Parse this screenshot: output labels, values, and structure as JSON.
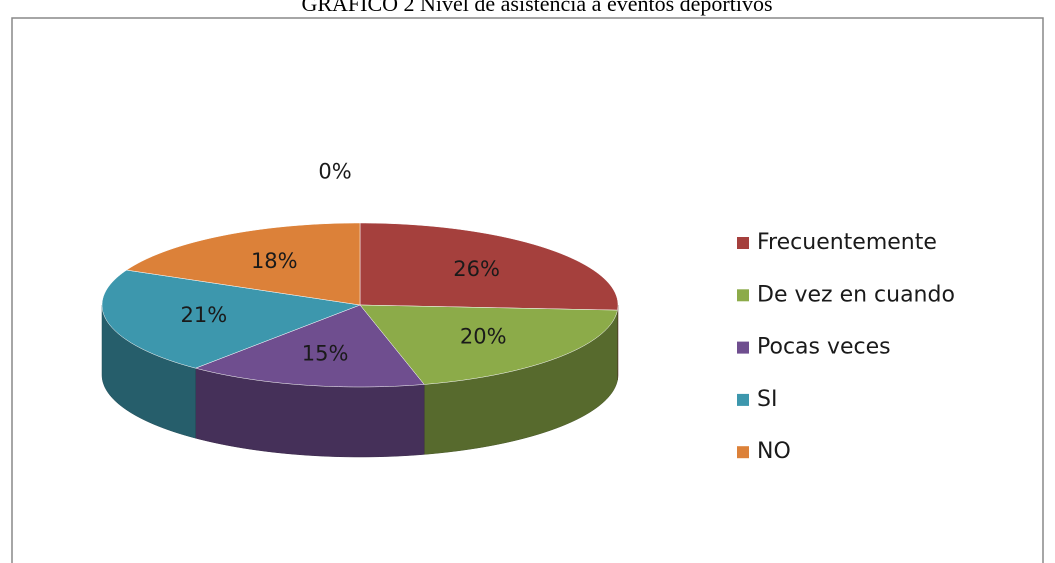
{
  "chart_data": {
    "type": "pie",
    "title": "GRÁFICO 2 Nivel de asistencia a eventos deportivos",
    "categories": [
      "Frecuentemente",
      "De vez en cuando",
      "Pocas veces",
      "SI",
      "NO",
      null
    ],
    "values": [
      26,
      20,
      15,
      21,
      18,
      0
    ],
    "value_labels": [
      "26%",
      "20%",
      "15%",
      "21%",
      "18%",
      "0%"
    ],
    "colors": [
      "#a5403d",
      "#8cab49",
      "#6f4e8f",
      "#3d97ad",
      "#dc8139",
      "#4a6fb0"
    ],
    "legend": "right"
  }
}
